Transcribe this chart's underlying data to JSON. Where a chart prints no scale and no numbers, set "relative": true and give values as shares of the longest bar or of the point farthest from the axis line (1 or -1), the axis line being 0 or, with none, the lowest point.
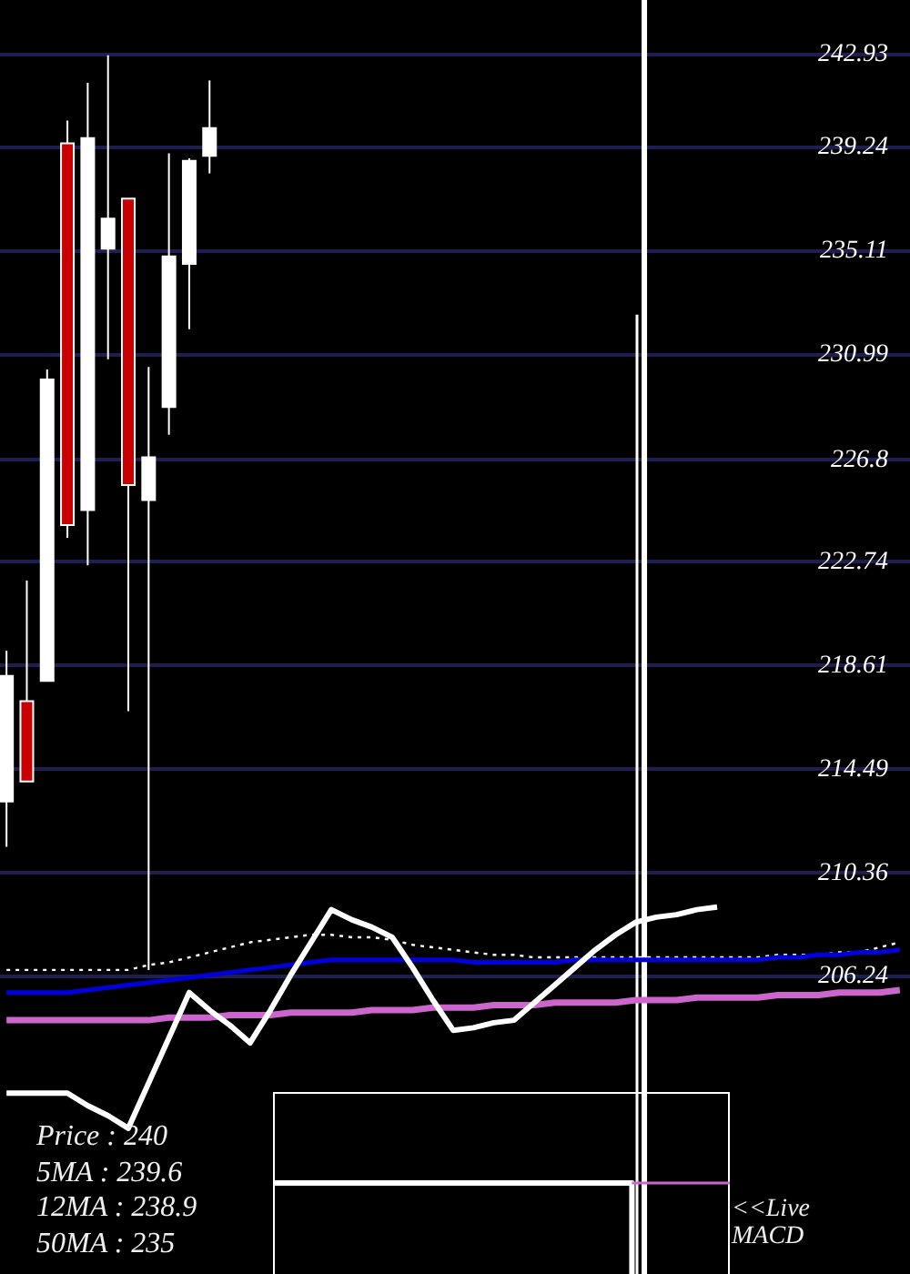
{
  "chart_data": [
    {
      "type": "candlestick",
      "categories": [
        null,
        null,
        null,
        null,
        null,
        null,
        null,
        null,
        null,
        null,
        null,
        null,
        null,
        null,
        null,
        null,
        null,
        null,
        null,
        null,
        null,
        null,
        null,
        null,
        null,
        null,
        null,
        null,
        null,
        null,
        null,
        null,
        null,
        null,
        null,
        null,
        null,
        null,
        null,
        null,
        null,
        null,
        null,
        null,
        null
      ],
      "ohlc": [
        [
          213.2,
          219.2,
          211.4,
          218.2
        ],
        [
          217.2,
          222.0,
          214.0,
          214.0
        ],
        [
          218.0,
          230.4,
          218.0,
          230.0
        ],
        [
          239.4,
          240.3,
          223.7,
          224.2
        ],
        [
          224.8,
          241.8,
          222.6,
          239.6
        ],
        [
          235.2,
          242.9,
          230.8,
          236.4
        ],
        [
          237.2,
          237.2,
          216.8,
          225.8
        ],
        [
          225.2,
          230.5,
          206.5,
          226.9
        ],
        [
          228.9,
          239.0,
          227.8,
          234.9
        ],
        [
          234.6,
          238.8,
          232.0,
          238.7
        ],
        [
          238.9,
          241.9,
          238.2,
          240.0
        ],
        null,
        null,
        null,
        null,
        null,
        null,
        null,
        null,
        null,
        null,
        null,
        null,
        null,
        null,
        null,
        null,
        null,
        null,
        null,
        null,
        null,
        null,
        null,
        null,
        null,
        null,
        null,
        null,
        null,
        null,
        null,
        null,
        null,
        null
      ],
      "colors": [
        "#ffffff",
        "#c80000",
        "#ffffff",
        "#c80000",
        "#ffffff",
        "#ffffff",
        "#c80000",
        "#ffffff",
        "#ffffff",
        "#ffffff",
        "#ffffff",
        null,
        null,
        null,
        null,
        null,
        null,
        null,
        null,
        null,
        null,
        null,
        null,
        null,
        null,
        null,
        null,
        null,
        null,
        null,
        null,
        null,
        null,
        null,
        null,
        null,
        null,
        null,
        null,
        null,
        null,
        null,
        null,
        null,
        null
      ],
      "series": [
        {
          "type": "line",
          "color": "#ffffff",
          "line_style": "dotted",
          "values": [
            206.5,
            206.5,
            206.5,
            206.5,
            206.5,
            206.5,
            206.5,
            206.7,
            206.8,
            207.0,
            207.2,
            207.4,
            207.6,
            207.7,
            207.8,
            207.9,
            207.9,
            207.8,
            207.8,
            207.7,
            207.5,
            207.4,
            207.3,
            207.2,
            207.1,
            207.1,
            207.0,
            207.0,
            207.0,
            207.0,
            207.0,
            207.0,
            207.0,
            207.0,
            207.0,
            207.0,
            207.0,
            207.0,
            207.1,
            207.1,
            207.1,
            207.2,
            207.2,
            207.4,
            207.6
          ]
        },
        {
          "type": "line",
          "color": "#0000dd",
          "values": [
            205.6,
            205.6,
            205.6,
            205.6,
            205.7,
            205.8,
            205.9,
            206.0,
            206.1,
            206.2,
            206.3,
            206.4,
            206.5,
            206.6,
            206.7,
            206.8,
            206.9,
            206.9,
            206.9,
            206.9,
            206.9,
            206.9,
            206.9,
            206.8,
            206.8,
            206.8,
            206.8,
            206.8,
            206.9,
            206.9,
            206.9,
            206.9,
            206.9,
            206.9,
            206.9,
            206.9,
            206.9,
            206.9,
            207.0,
            207.0,
            207.1,
            207.1,
            207.2,
            207.2,
            207.3
          ]
        },
        {
          "type": "line",
          "color": "#cc66cc",
          "values": [
            204.5,
            204.5,
            204.5,
            204.5,
            204.5,
            204.5,
            204.5,
            204.5,
            204.6,
            204.6,
            204.6,
            204.7,
            204.7,
            204.7,
            204.8,
            204.8,
            204.8,
            204.8,
            204.9,
            204.9,
            204.9,
            205.0,
            205.0,
            205.0,
            205.1,
            205.1,
            205.1,
            205.2,
            205.2,
            205.2,
            205.2,
            205.3,
            205.3,
            205.3,
            205.4,
            205.4,
            205.4,
            205.4,
            205.5,
            205.5,
            205.5,
            205.6,
            205.6,
            205.6,
            205.7
          ]
        },
        {
          "type": "line",
          "color": "#ffffff",
          "values": [
            201.6,
            201.6,
            201.6,
            201.6,
            201.1,
            200.7,
            200.2,
            202.0,
            203.8,
            205.6,
            204.9,
            204.3,
            203.6,
            204.9,
            206.3,
            207.6,
            208.9,
            208.5,
            208.2,
            207.8,
            206.6,
            205.3,
            204.1,
            204.2,
            204.4,
            204.5,
            205.2,
            205.9,
            206.6,
            207.3,
            207.9,
            208.4,
            208.6,
            208.7,
            208.9,
            209.0,
            null,
            null,
            null,
            null,
            null,
            null,
            null,
            null,
            null
          ]
        }
      ],
      "ylim": [
        194.4,
        245.1
      ],
      "yticks": [
        206.24,
        210.36,
        214.49,
        218.61,
        222.74,
        226.8,
        230.99,
        235.11,
        239.24,
        242.93
      ],
      "grid": "y",
      "tick_labels": "y",
      "annotations": [
        "Price : 240",
        "5MA : 239.6",
        "12MA : 238.9",
        "50MA : 235"
      ]
    },
    {
      "type": "line",
      "relative": true,
      "tick_labels": false,
      "categories": [
        null,
        null,
        null,
        null,
        null,
        null,
        null,
        null,
        null,
        null,
        null,
        null,
        null,
        null,
        null
      ],
      "series": [
        {
          "type": "step",
          "color": "#ffffff",
          "values": [
            1,
            1,
            1,
            1,
            1,
            1,
            1,
            1,
            1,
            1,
            1,
            0,
            null,
            null,
            null
          ]
        },
        {
          "type": "line",
          "color": "#cc66cc",
          "values": [
            null,
            null,
            null,
            null,
            null,
            null,
            null,
            null,
            null,
            null,
            null,
            1,
            1,
            1,
            1
          ]
        }
      ],
      "annotations": [
        "<<Live MACD"
      ]
    }
  ]
}
